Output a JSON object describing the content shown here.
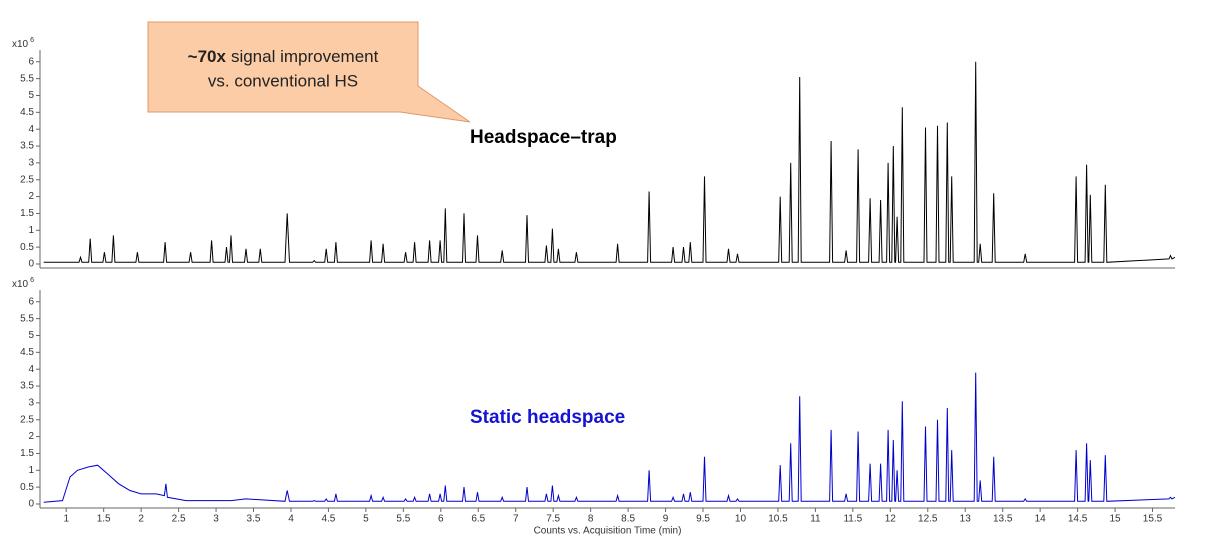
{
  "chart_data": [
    {
      "type": "line",
      "label": "Headspace–trap",
      "color": "#000000",
      "label_color": "#000000",
      "y_multiplier": "x10",
      "y_exponent": "6",
      "xlim": [
        0.65,
        15.8
      ],
      "ylim": [
        0,
        6.35
      ],
      "yticks": [
        0,
        0.5,
        1,
        1.5,
        2,
        2.5,
        3,
        3.5,
        4,
        4.5,
        5,
        5.5,
        6
      ],
      "x": [
        0.7,
        1.17,
        1.19,
        1.21,
        1.3,
        1.32,
        1.34,
        1.49,
        1.51,
        1.53,
        1.61,
        1.63,
        1.65,
        1.93,
        1.95,
        1.97,
        2.3,
        2.32,
        2.34,
        2.64,
        2.66,
        2.68,
        2.92,
        2.94,
        2.96,
        3.12,
        3.14,
        3.16,
        3.18,
        3.2,
        3.22,
        3.38,
        3.4,
        3.42,
        3.57,
        3.59,
        3.61,
        3.92,
        3.95,
        3.98,
        4.29,
        4.31,
        4.33,
        4.45,
        4.47,
        4.49,
        4.58,
        4.6,
        4.62,
        5.05,
        5.07,
        5.09,
        5.21,
        5.23,
        5.25,
        5.51,
        5.53,
        5.55,
        5.63,
        5.65,
        5.67,
        5.83,
        5.85,
        5.87,
        5.97,
        5.99,
        6.01,
        6.04,
        6.06,
        6.08,
        6.29,
        6.31,
        6.33,
        6.47,
        6.49,
        6.51,
        6.8,
        6.82,
        6.84,
        7.13,
        7.15,
        7.17,
        7.39,
        7.41,
        7.43,
        7.47,
        7.49,
        7.51,
        7.55,
        7.57,
        7.59,
        7.79,
        7.81,
        7.83,
        8.34,
        8.36,
        8.38,
        8.76,
        8.78,
        8.8,
        9.08,
        9.1,
        9.12,
        9.22,
        9.24,
        9.26,
        9.31,
        9.33,
        9.35,
        9.5,
        9.52,
        9.54,
        9.82,
        9.84,
        9.86,
        9.94,
        9.96,
        9.98,
        10.51,
        10.53,
        10.55,
        10.65,
        10.67,
        10.69,
        10.77,
        10.79,
        10.81,
        11.19,
        11.21,
        11.23,
        11.39,
        11.41,
        11.43,
        11.55,
        11.57,
        11.59,
        11.71,
        11.73,
        11.75,
        11.85,
        11.87,
        11.89,
        11.95,
        11.97,
        11.99,
        12.02,
        12.04,
        12.06,
        12.07,
        12.09,
        12.11,
        12.14,
        12.16,
        12.18,
        12.45,
        12.47,
        12.49,
        12.61,
        12.63,
        12.65,
        12.74,
        12.76,
        12.78,
        12.8,
        12.82,
        12.84,
        13.12,
        13.14,
        13.16,
        13.18,
        13.2,
        13.22,
        13.36,
        13.38,
        13.4,
        13.78,
        13.8,
        13.82,
        14.46,
        14.48,
        14.5,
        14.6,
        14.62,
        14.64,
        14.65,
        14.67,
        14.69,
        14.85,
        14.87,
        14.89,
        15.72,
        15.74,
        15.76,
        15.8
      ],
      "values": [
        0.05,
        0.05,
        0.2,
        0.05,
        0.05,
        0.75,
        0.05,
        0.05,
        0.35,
        0.05,
        0.05,
        0.85,
        0.05,
        0.05,
        0.35,
        0.05,
        0.05,
        0.65,
        0.05,
        0.05,
        0.35,
        0.05,
        0.05,
        0.7,
        0.05,
        0.05,
        0.5,
        0.05,
        0.05,
        0.85,
        0.05,
        0.05,
        0.45,
        0.05,
        0.05,
        0.45,
        0.05,
        0.05,
        1.5,
        0.05,
        0.05,
        0.1,
        0.05,
        0.05,
        0.45,
        0.05,
        0.05,
        0.65,
        0.05,
        0.05,
        0.7,
        0.05,
        0.05,
        0.6,
        0.05,
        0.05,
        0.35,
        0.05,
        0.05,
        0.65,
        0.05,
        0.05,
        0.7,
        0.05,
        0.05,
        0.7,
        0.05,
        0.05,
        1.65,
        0.05,
        0.05,
        1.5,
        0.05,
        0.05,
        0.85,
        0.05,
        0.05,
        0.4,
        0.05,
        0.05,
        1.45,
        0.05,
        0.05,
        0.55,
        0.05,
        0.05,
        1.05,
        0.05,
        0.05,
        0.45,
        0.05,
        0.05,
        0.35,
        0.05,
        0.05,
        0.6,
        0.05,
        0.05,
        2.15,
        0.05,
        0.05,
        0.5,
        0.05,
        0.05,
        0.5,
        0.05,
        0.05,
        0.65,
        0.05,
        0.05,
        2.6,
        0.05,
        0.05,
        0.45,
        0.05,
        0.05,
        0.3,
        0.05,
        0.05,
        2,
        0.05,
        0.05,
        3,
        0.05,
        0.05,
        5.55,
        0.05,
        0.05,
        3.65,
        0.05,
        0.05,
        0.4,
        0.05,
        0.05,
        3.4,
        0.05,
        0.05,
        1.95,
        0.05,
        0.05,
        1.9,
        0.05,
        0.05,
        3,
        0.05,
        0.05,
        3.5,
        0.05,
        0.05,
        1.4,
        0.05,
        0.05,
        4.65,
        0.05,
        0.05,
        4.05,
        0.05,
        0.05,
        4.1,
        0.05,
        0.05,
        4.2,
        0.05,
        0.05,
        2.6,
        0.05,
        0.05,
        6,
        0.05,
        0.05,
        0.6,
        0.05,
        0.05,
        2.1,
        0.05,
        0.05,
        0.3,
        0.05,
        0.05,
        2.6,
        0.05,
        0.05,
        2.95,
        0.05,
        0.05,
        2.05,
        0.05,
        0.05,
        2.35,
        0.05,
        0.15,
        0.25,
        0.15,
        0.2
      ]
    },
    {
      "type": "line",
      "label": "Static headspace",
      "color": "#0000cc",
      "label_color": "#1414d2",
      "y_multiplier": "x10",
      "y_exponent": "6",
      "x_label": "Counts vs. Acquisition Time (min)",
      "xlim": [
        0.65,
        15.8
      ],
      "ylim": [
        0,
        6.35
      ],
      "xticks": [
        1,
        1.5,
        2,
        2.5,
        3,
        3.5,
        4,
        4.5,
        5,
        5.5,
        6,
        6.5,
        7,
        7.5,
        8,
        8.5,
        9,
        9.5,
        10,
        10.5,
        11,
        11.5,
        12,
        12.5,
        13,
        13.5,
        14,
        14.5,
        15,
        15.5
      ],
      "yticks": [
        0,
        0.5,
        1,
        1.5,
        2,
        2.5,
        3,
        3.5,
        4,
        4.5,
        5,
        5.5,
        6
      ],
      "x": [
        0.7,
        0.95,
        1.05,
        1.15,
        1.3,
        1.42,
        1.55,
        1.7,
        1.85,
        2,
        2.2,
        2.31,
        2.33,
        2.35,
        2.6,
        3.2,
        3.4,
        3.92,
        3.95,
        3.98,
        4.29,
        4.31,
        4.33,
        4.45,
        4.47,
        4.49,
        4.58,
        4.6,
        4.62,
        5.05,
        5.07,
        5.09,
        5.21,
        5.23,
        5.25,
        5.51,
        5.53,
        5.55,
        5.63,
        5.65,
        5.67,
        5.83,
        5.85,
        5.87,
        5.97,
        5.99,
        6.01,
        6.04,
        6.06,
        6.08,
        6.29,
        6.31,
        6.33,
        6.47,
        6.49,
        6.51,
        6.8,
        6.82,
        6.84,
        7.13,
        7.15,
        7.17,
        7.39,
        7.41,
        7.43,
        7.47,
        7.49,
        7.51,
        7.55,
        7.57,
        7.59,
        7.79,
        7.81,
        7.83,
        8.34,
        8.36,
        8.38,
        8.76,
        8.78,
        8.8,
        9.08,
        9.1,
        9.12,
        9.22,
        9.24,
        9.26,
        9.31,
        9.33,
        9.35,
        9.5,
        9.52,
        9.54,
        9.82,
        9.84,
        9.86,
        9.94,
        9.96,
        9.98,
        10.51,
        10.53,
        10.55,
        10.65,
        10.67,
        10.69,
        10.77,
        10.79,
        10.81,
        11.19,
        11.21,
        11.23,
        11.39,
        11.41,
        11.43,
        11.55,
        11.57,
        11.59,
        11.71,
        11.73,
        11.75,
        11.85,
        11.87,
        11.89,
        11.95,
        11.97,
        11.99,
        12.02,
        12.04,
        12.06,
        12.07,
        12.09,
        12.11,
        12.14,
        12.16,
        12.18,
        12.45,
        12.47,
        12.49,
        12.61,
        12.63,
        12.65,
        12.74,
        12.76,
        12.78,
        12.8,
        12.82,
        12.84,
        13.12,
        13.14,
        13.16,
        13.18,
        13.2,
        13.22,
        13.36,
        13.38,
        13.4,
        13.78,
        13.8,
        13.82,
        14.46,
        14.48,
        14.5,
        14.6,
        14.62,
        14.64,
        14.65,
        14.67,
        14.69,
        14.85,
        14.87,
        14.89,
        15.72,
        15.74,
        15.76,
        15.8
      ],
      "values": [
        0.05,
        0.1,
        0.8,
        1,
        1.1,
        1.15,
        0.9,
        0.6,
        0.4,
        0.3,
        0.3,
        0.25,
        0.6,
        0.2,
        0.1,
        0.1,
        0.15,
        0.08,
        0.4,
        0.08,
        0.08,
        0.1,
        0.08,
        0.08,
        0.15,
        0.08,
        0.08,
        0.3,
        0.08,
        0.08,
        0.25,
        0.08,
        0.08,
        0.2,
        0.08,
        0.08,
        0.15,
        0.08,
        0.08,
        0.2,
        0.08,
        0.08,
        0.3,
        0.08,
        0.08,
        0.3,
        0.08,
        0.08,
        0.55,
        0.08,
        0.08,
        0.5,
        0.08,
        0.08,
        0.35,
        0.08,
        0.08,
        0.2,
        0.08,
        0.08,
        0.5,
        0.08,
        0.08,
        0.3,
        0.08,
        0.08,
        0.55,
        0.08,
        0.08,
        0.25,
        0.08,
        0.08,
        0.2,
        0.08,
        0.08,
        0.25,
        0.08,
        0.08,
        1,
        0.08,
        0.08,
        0.2,
        0.08,
        0.08,
        0.3,
        0.08,
        0.08,
        0.35,
        0.08,
        0.08,
        1.4,
        0.08,
        0.08,
        0.25,
        0.08,
        0.08,
        0.15,
        0.08,
        0.08,
        1.15,
        0.08,
        0.08,
        1.8,
        0.08,
        0.08,
        3.2,
        0.08,
        0.08,
        2.2,
        0.08,
        0.08,
        0.3,
        0.08,
        0.08,
        2.15,
        0.08,
        0.08,
        1.2,
        0.08,
        0.08,
        1.2,
        0.08,
        0.08,
        2.2,
        0.08,
        0.08,
        1.9,
        0.08,
        0.08,
        1,
        0.08,
        0.08,
        3.05,
        0.08,
        0.08,
        2.3,
        0.08,
        0.08,
        2.5,
        0.08,
        0.08,
        2.85,
        0.08,
        0.08,
        1.6,
        0.08,
        0.08,
        3.9,
        0.08,
        0.08,
        0.7,
        0.08,
        0.08,
        1.4,
        0.08,
        0.08,
        0.15,
        0.08,
        0.08,
        1.6,
        0.08,
        0.08,
        1.8,
        0.08,
        0.08,
        1.3,
        0.08,
        0.08,
        1.45,
        0.08,
        0.15,
        0.2,
        0.15,
        0.2
      ]
    }
  ],
  "annotation": [
    "~70x",
    "signal improvement",
    "vs. conventional HS"
  ]
}
